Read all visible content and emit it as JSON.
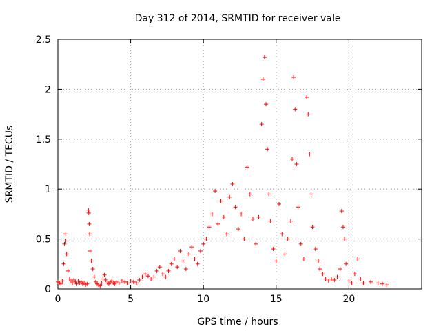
{
  "chart_data": {
    "type": "scatter",
    "title": "Day 312 of 2014, SRMTID for receiver vale",
    "xlabel": "GPS time / hours",
    "ylabel": "SRMTID / TECUs",
    "xlim": [
      0,
      25
    ],
    "ylim": [
      0,
      2.5
    ],
    "xticks": [
      0,
      5,
      10,
      15,
      20
    ],
    "yticks": [
      0,
      0.5,
      1,
      1.5,
      2,
      2.5
    ],
    "ytick_labels": [
      "0",
      "0.5",
      "1",
      "1.5",
      "2",
      "2.5"
    ],
    "grid": true,
    "marker": "+",
    "series": [
      {
        "name": "SRMTID",
        "color": "#ff0000",
        "points": [
          [
            0.0,
            0.07
          ],
          [
            0.1,
            0.06
          ],
          [
            0.2,
            0.05
          ],
          [
            0.3,
            0.08
          ],
          [
            0.4,
            0.25
          ],
          [
            0.45,
            0.45
          ],
          [
            0.5,
            0.55
          ],
          [
            0.55,
            0.48
          ],
          [
            0.6,
            0.35
          ],
          [
            0.7,
            0.18
          ],
          [
            0.8,
            0.1
          ],
          [
            0.9,
            0.08
          ],
          [
            1.0,
            0.06
          ],
          [
            1.1,
            0.09
          ],
          [
            1.2,
            0.07
          ],
          [
            1.3,
            0.05
          ],
          [
            1.4,
            0.08
          ],
          [
            1.5,
            0.06
          ],
          [
            1.6,
            0.07
          ],
          [
            1.7,
            0.05
          ],
          [
            1.8,
            0.06
          ],
          [
            1.9,
            0.04
          ],
          [
            2.0,
            0.05
          ],
          [
            2.1,
            0.79
          ],
          [
            2.12,
            0.76
          ],
          [
            2.15,
            0.65
          ],
          [
            2.18,
            0.55
          ],
          [
            2.2,
            0.38
          ],
          [
            2.3,
            0.28
          ],
          [
            2.4,
            0.2
          ],
          [
            2.5,
            0.12
          ],
          [
            2.6,
            0.07
          ],
          [
            2.7,
            0.05
          ],
          [
            2.8,
            0.04
          ],
          [
            2.9,
            0.03
          ],
          [
            3.0,
            0.06
          ],
          [
            3.1,
            0.1
          ],
          [
            3.2,
            0.14
          ],
          [
            3.3,
            0.09
          ],
          [
            3.4,
            0.06
          ],
          [
            3.5,
            0.05
          ],
          [
            3.6,
            0.07
          ],
          [
            3.7,
            0.08
          ],
          [
            3.8,
            0.06
          ],
          [
            3.9,
            0.05
          ],
          [
            4.0,
            0.07
          ],
          [
            4.2,
            0.06
          ],
          [
            4.4,
            0.08
          ],
          [
            4.6,
            0.07
          ],
          [
            4.8,
            0.06
          ],
          [
            5.0,
            0.08
          ],
          [
            5.2,
            0.07
          ],
          [
            5.4,
            0.06
          ],
          [
            5.6,
            0.09
          ],
          [
            5.8,
            0.12
          ],
          [
            6.0,
            0.15
          ],
          [
            6.2,
            0.13
          ],
          [
            6.4,
            0.1
          ],
          [
            6.6,
            0.12
          ],
          [
            6.8,
            0.18
          ],
          [
            7.0,
            0.22
          ],
          [
            7.2,
            0.15
          ],
          [
            7.4,
            0.12
          ],
          [
            7.6,
            0.18
          ],
          [
            7.8,
            0.25
          ],
          [
            8.0,
            0.3
          ],
          [
            8.2,
            0.22
          ],
          [
            8.4,
            0.38
          ],
          [
            8.6,
            0.28
          ],
          [
            8.8,
            0.2
          ],
          [
            9.0,
            0.35
          ],
          [
            9.2,
            0.42
          ],
          [
            9.4,
            0.3
          ],
          [
            9.6,
            0.25
          ],
          [
            9.8,
            0.38
          ],
          [
            10.0,
            0.45
          ],
          [
            10.2,
            0.5
          ],
          [
            10.4,
            0.62
          ],
          [
            10.6,
            0.75
          ],
          [
            10.8,
            0.98
          ],
          [
            11.0,
            0.65
          ],
          [
            11.2,
            0.88
          ],
          [
            11.4,
            0.72
          ],
          [
            11.6,
            0.55
          ],
          [
            11.8,
            0.92
          ],
          [
            12.0,
            1.05
          ],
          [
            12.2,
            0.82
          ],
          [
            12.4,
            0.6
          ],
          [
            12.6,
            0.75
          ],
          [
            12.8,
            0.5
          ],
          [
            13.0,
            1.22
          ],
          [
            13.2,
            0.95
          ],
          [
            13.4,
            0.7
          ],
          [
            13.6,
            0.45
          ],
          [
            13.8,
            0.72
          ],
          [
            14.0,
            1.65
          ],
          [
            14.1,
            2.1
          ],
          [
            14.2,
            2.32
          ],
          [
            14.3,
            1.85
          ],
          [
            14.4,
            1.4
          ],
          [
            14.5,
            0.95
          ],
          [
            14.6,
            0.68
          ],
          [
            14.8,
            0.4
          ],
          [
            15.0,
            0.28
          ],
          [
            15.2,
            0.85
          ],
          [
            15.4,
            0.55
          ],
          [
            15.6,
            0.35
          ],
          [
            15.8,
            0.5
          ],
          [
            16.0,
            0.68
          ],
          [
            16.1,
            1.3
          ],
          [
            16.2,
            2.12
          ],
          [
            16.3,
            1.8
          ],
          [
            16.4,
            1.25
          ],
          [
            16.5,
            0.82
          ],
          [
            16.7,
            0.45
          ],
          [
            16.9,
            0.3
          ],
          [
            17.1,
            1.92
          ],
          [
            17.2,
            1.75
          ],
          [
            17.3,
            1.35
          ],
          [
            17.4,
            0.95
          ],
          [
            17.5,
            0.62
          ],
          [
            17.7,
            0.4
          ],
          [
            17.9,
            0.28
          ],
          [
            18.0,
            0.2
          ],
          [
            18.2,
            0.15
          ],
          [
            18.4,
            0.1
          ],
          [
            18.6,
            0.08
          ],
          [
            18.8,
            0.1
          ],
          [
            19.0,
            0.09
          ],
          [
            19.2,
            0.12
          ],
          [
            19.4,
            0.2
          ],
          [
            19.5,
            0.78
          ],
          [
            19.6,
            0.62
          ],
          [
            19.7,
            0.5
          ],
          [
            19.8,
            0.25
          ],
          [
            20.0,
            0.08
          ],
          [
            20.2,
            0.06
          ],
          [
            20.4,
            0.15
          ],
          [
            20.6,
            0.3
          ],
          [
            20.8,
            0.1
          ],
          [
            21.0,
            0.06
          ],
          [
            21.5,
            0.07
          ],
          [
            22.0,
            0.06
          ],
          [
            22.3,
            0.05
          ],
          [
            22.6,
            0.04
          ]
        ]
      }
    ]
  }
}
